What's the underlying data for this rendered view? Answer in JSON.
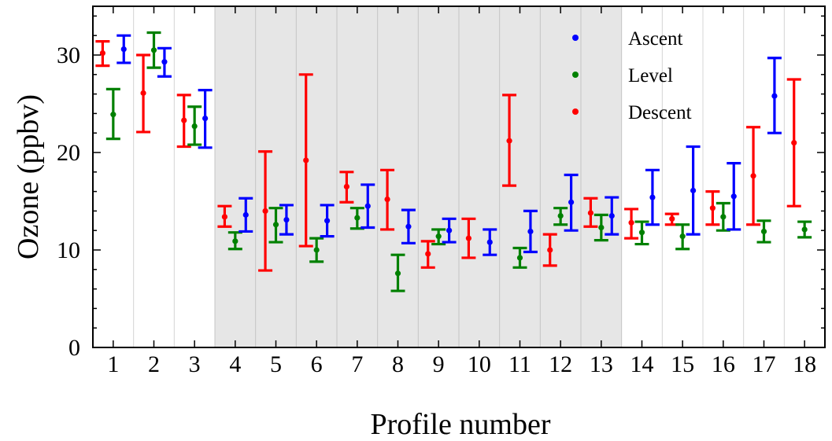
{
  "chart_data": {
    "type": "scatter",
    "title": "",
    "xlabel": "Profile number",
    "ylabel": "Ozone (ppbv)",
    "ylim": [
      0,
      35
    ],
    "yticks": [
      0,
      10,
      20,
      30
    ],
    "categories": [
      "1",
      "2",
      "3",
      "4",
      "5",
      "6",
      "7",
      "8",
      "9",
      "10",
      "11",
      "12",
      "13",
      "14",
      "15",
      "16",
      "17",
      "18"
    ],
    "shaded_profiles": [
      4,
      13
    ],
    "grid": false,
    "legend_position": "top-right",
    "series": [
      {
        "name": "Descent",
        "color": "#ff0000",
        "values": [
          {
            "profile": 1,
            "y": 30.2,
            "low": 28.9,
            "high": 31.4
          },
          {
            "profile": 2,
            "y": 26.1,
            "low": 22.1,
            "high": 30.0
          },
          {
            "profile": 3,
            "y": 23.3,
            "low": 20.6,
            "high": 25.9
          },
          {
            "profile": 4,
            "y": 13.4,
            "low": 12.4,
            "high": 14.5
          },
          {
            "profile": 5,
            "y": 14.0,
            "low": 7.9,
            "high": 20.1
          },
          {
            "profile": 6,
            "y": 19.2,
            "low": 10.4,
            "high": 28.0
          },
          {
            "profile": 7,
            "y": 16.5,
            "low": 14.9,
            "high": 18.0
          },
          {
            "profile": 8,
            "y": 15.2,
            "low": 12.1,
            "high": 18.2
          },
          {
            "profile": 9,
            "y": 9.6,
            "low": 8.2,
            "high": 10.9
          },
          {
            "profile": 10,
            "y": 11.2,
            "low": 9.2,
            "high": 13.2
          },
          {
            "profile": 11,
            "y": 21.2,
            "low": 16.6,
            "high": 25.9
          },
          {
            "profile": 12,
            "y": 10.0,
            "low": 8.4,
            "high": 11.6
          },
          {
            "profile": 13,
            "y": 13.8,
            "low": 12.4,
            "high": 15.3
          },
          {
            "profile": 14,
            "y": 12.8,
            "low": 11.2,
            "high": 14.2
          },
          {
            "profile": 15,
            "y": 13.2,
            "low": 12.6,
            "high": 13.7
          },
          {
            "profile": 16,
            "y": 14.3,
            "low": 12.6,
            "high": 16.0
          },
          {
            "profile": 17,
            "y": 17.6,
            "low": 12.6,
            "high": 22.6
          },
          {
            "profile": 18,
            "y": 21.0,
            "low": 14.5,
            "high": 27.5
          }
        ]
      },
      {
        "name": "Level",
        "color": "#008000",
        "values": [
          {
            "profile": 1,
            "y": 23.9,
            "low": 21.4,
            "high": 26.5
          },
          {
            "profile": 2,
            "y": 30.5,
            "low": 28.7,
            "high": 32.3
          },
          {
            "profile": 3,
            "y": 22.7,
            "low": 20.8,
            "high": 24.7
          },
          {
            "profile": 4,
            "y": 10.9,
            "low": 10.1,
            "high": 11.8
          },
          {
            "profile": 5,
            "y": 12.6,
            "low": 10.8,
            "high": 14.3
          },
          {
            "profile": 6,
            "y": 10.0,
            "low": 8.8,
            "high": 11.2
          },
          {
            "profile": 7,
            "y": 13.3,
            "low": 12.2,
            "high": 14.3
          },
          {
            "profile": 8,
            "y": 7.6,
            "low": 5.8,
            "high": 9.5
          },
          {
            "profile": 9,
            "y": 11.4,
            "low": 10.6,
            "high": 12.1
          },
          {
            "profile": 11,
            "y": 9.2,
            "low": 8.2,
            "high": 10.2
          },
          {
            "profile": 12,
            "y": 13.5,
            "low": 12.6,
            "high": 14.3
          },
          {
            "profile": 13,
            "y": 12.3,
            "low": 11.0,
            "high": 13.6
          },
          {
            "profile": 14,
            "y": 11.8,
            "low": 10.6,
            "high": 12.9
          },
          {
            "profile": 15,
            "y": 11.4,
            "low": 10.1,
            "high": 12.6
          },
          {
            "profile": 16,
            "y": 13.4,
            "low": 12.0,
            "high": 14.8
          },
          {
            "profile": 17,
            "y": 11.9,
            "low": 10.8,
            "high": 13.0
          },
          {
            "profile": 18,
            "y": 12.1,
            "low": 11.3,
            "high": 12.9
          }
        ]
      },
      {
        "name": "Ascent",
        "color": "#0000ff",
        "values": [
          {
            "profile": 1,
            "y": 30.6,
            "low": 29.2,
            "high": 32.0
          },
          {
            "profile": 2,
            "y": 29.3,
            "low": 27.8,
            "high": 30.7
          },
          {
            "profile": 3,
            "y": 23.5,
            "low": 20.5,
            "high": 26.4
          },
          {
            "profile": 4,
            "y": 13.6,
            "low": 11.9,
            "high": 15.3
          },
          {
            "profile": 5,
            "y": 13.1,
            "low": 11.6,
            "high": 14.6
          },
          {
            "profile": 6,
            "y": 13.0,
            "low": 11.4,
            "high": 14.6
          },
          {
            "profile": 7,
            "y": 14.5,
            "low": 12.3,
            "high": 16.7
          },
          {
            "profile": 8,
            "y": 12.4,
            "low": 10.7,
            "high": 14.1
          },
          {
            "profile": 9,
            "y": 12.0,
            "low": 10.8,
            "high": 13.2
          },
          {
            "profile": 10,
            "y": 10.8,
            "low": 9.5,
            "high": 12.1
          },
          {
            "profile": 11,
            "y": 11.9,
            "low": 9.8,
            "high": 14.0
          },
          {
            "profile": 12,
            "y": 14.9,
            "low": 12.0,
            "high": 17.7
          },
          {
            "profile": 13,
            "y": 13.5,
            "low": 11.6,
            "high": 15.4
          },
          {
            "profile": 14,
            "y": 15.4,
            "low": 12.6,
            "high": 18.2
          },
          {
            "profile": 15,
            "y": 16.1,
            "low": 11.6,
            "high": 20.6
          },
          {
            "profile": 16,
            "y": 15.5,
            "low": 12.1,
            "high": 18.9
          },
          {
            "profile": 17,
            "y": 25.8,
            "low": 22.0,
            "high": 29.7
          }
        ]
      }
    ],
    "legend": [
      {
        "label": "Ascent",
        "color": "#0000ff"
      },
      {
        "label": "Level",
        "color": "#008000"
      },
      {
        "label": "Descent",
        "color": "#ff0000"
      }
    ]
  }
}
